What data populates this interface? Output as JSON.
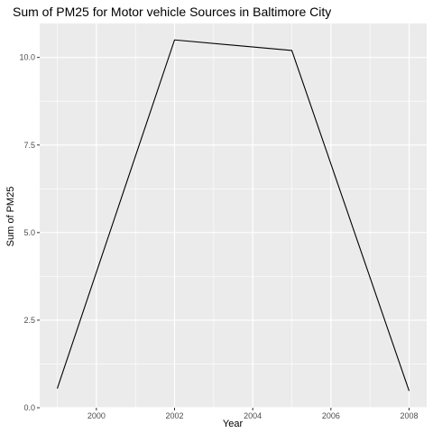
{
  "chart_data": {
    "type": "line",
    "title": "Sum of PM25 for Motor vehicle Sources in Baltimore City",
    "xlabel": "Year",
    "ylabel": "Sum of PM25",
    "x": [
      1999,
      2002,
      2005,
      2008
    ],
    "series": [
      {
        "values": [
          0.55,
          10.5,
          10.2,
          0.48
        ]
      }
    ],
    "xticks": [
      2000,
      2002,
      2004,
      2006,
      2008
    ],
    "xtick_labels": [
      "2000",
      "2002",
      "2004",
      "2006",
      "2008"
    ],
    "yticks": [
      0,
      2.5,
      5,
      7.5,
      10
    ],
    "ytick_labels": [
      "0.0",
      "2.5",
      "5.0",
      "7.5",
      "10.0"
    ],
    "xlim": [
      1998.55,
      2008.45
    ],
    "ylim": [
      0,
      10.97
    ],
    "grid": true,
    "colors": {
      "panel_background": "#ebebeb",
      "grid": "#ffffff",
      "line": "#000000",
      "tick": "#333333"
    }
  }
}
